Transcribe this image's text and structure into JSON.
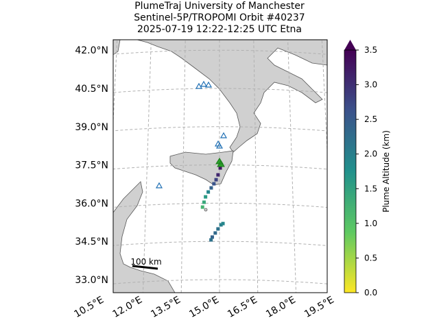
{
  "map": {
    "title_lines": [
      "PlumeTraj    University of Manchester",
      "Sentinel-5P/TROPOMI Orbit #40237",
      "2025-07-19   12:22-12:25 UTC   Etna"
    ],
    "lat_labels": [
      "42.0°N",
      "40.5°N",
      "39.0°N",
      "37.5°N",
      "36.0°N",
      "34.5°N",
      "33.0°N"
    ],
    "lats": [
      42.0,
      40.5,
      39.0,
      37.5,
      36.0,
      34.5,
      33.0
    ],
    "lon_labels": [
      "10.5°E",
      "12.0°E",
      "13.5°E",
      "15.0°E",
      "16.5°E",
      "18.0°E",
      "19.5°E"
    ],
    "lons": [
      10.5,
      12.0,
      13.5,
      15.0,
      16.5,
      18.0,
      19.5
    ],
    "scale_bar_label": "100 km"
  },
  "plume": {
    "lon": [
      15.03,
      14.94,
      14.86,
      14.77,
      14.66,
      14.54,
      14.43,
      14.37,
      14.31,
      15.06,
      14.94,
      14.83,
      14.71,
      14.66,
      15.14
    ],
    "lat": [
      37.38,
      37.11,
      36.92,
      36.76,
      36.6,
      36.44,
      36.25,
      36.04,
      35.85,
      35.15,
      34.99,
      34.83,
      34.67,
      34.56,
      35.2
    ],
    "altitude": [
      3.3,
      3.1,
      2.8,
      2.6,
      2.4,
      1.9,
      1.6,
      1.4,
      1.2,
      2.0,
      2.2,
      2.3,
      2.4,
      2.2,
      1.9
    ]
  },
  "colorbar": {
    "label": "Plume Altitude (km)",
    "lim": [
      0,
      3.5
    ],
    "ticks": [
      {
        "value": 0,
        "label": "0.0"
      },
      {
        "value": 0.5,
        "label": "0.5"
      },
      {
        "value": 1,
        "label": "1.0"
      },
      {
        "value": 1.5,
        "label": "1.5"
      },
      {
        "value": 2,
        "label": "2.0"
      },
      {
        "value": 2.5,
        "label": "2.5"
      },
      {
        "value": 3,
        "label": "3.0"
      },
      {
        "value": 3.5,
        "label": "3.5"
      }
    ]
  }
}
